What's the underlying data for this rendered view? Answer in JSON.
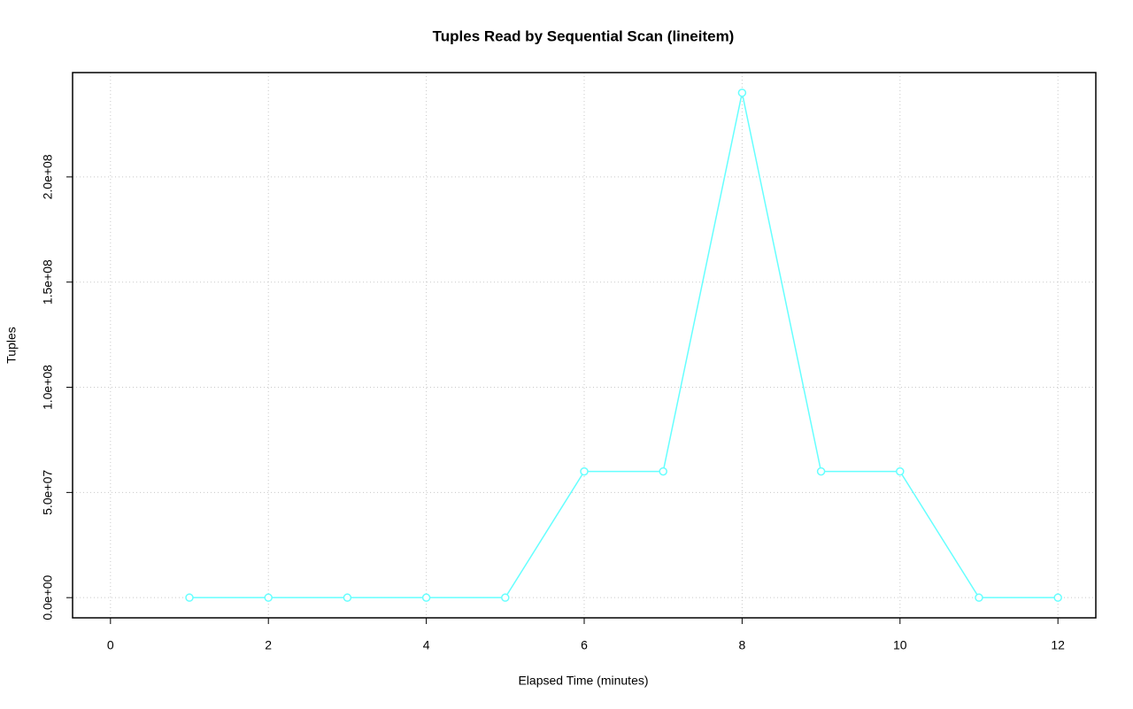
{
  "chart_data": {
    "type": "line",
    "title": "Tuples Read by Sequential Scan (lineitem)",
    "xlabel": "Elapsed Time (minutes)",
    "ylabel": "Tuples",
    "x": [
      1,
      2,
      3,
      4,
      5,
      6,
      7,
      8,
      9,
      10,
      11,
      12
    ],
    "series": [
      {
        "name": "lineitem",
        "color": "#66ffff",
        "values": [
          0,
          0,
          0,
          0,
          0,
          60000000,
          60000000,
          240000000,
          60000000,
          60000000,
          0,
          0
        ]
      }
    ],
    "xlim": [
      -0.48,
      12.48
    ],
    "xticks": [
      0,
      2,
      4,
      6,
      8,
      10,
      12
    ],
    "ylim": [
      -9600000,
      249600000
    ],
    "yticks": [
      {
        "value": 0,
        "label": "0.0e+00"
      },
      {
        "value": 50000000,
        "label": "5.0e+07"
      },
      {
        "value": 100000000,
        "label": "1.0e+08"
      },
      {
        "value": 150000000,
        "label": "1.5e+08"
      },
      {
        "value": 200000000,
        "label": "2.0e+08"
      }
    ],
    "grid": true
  }
}
